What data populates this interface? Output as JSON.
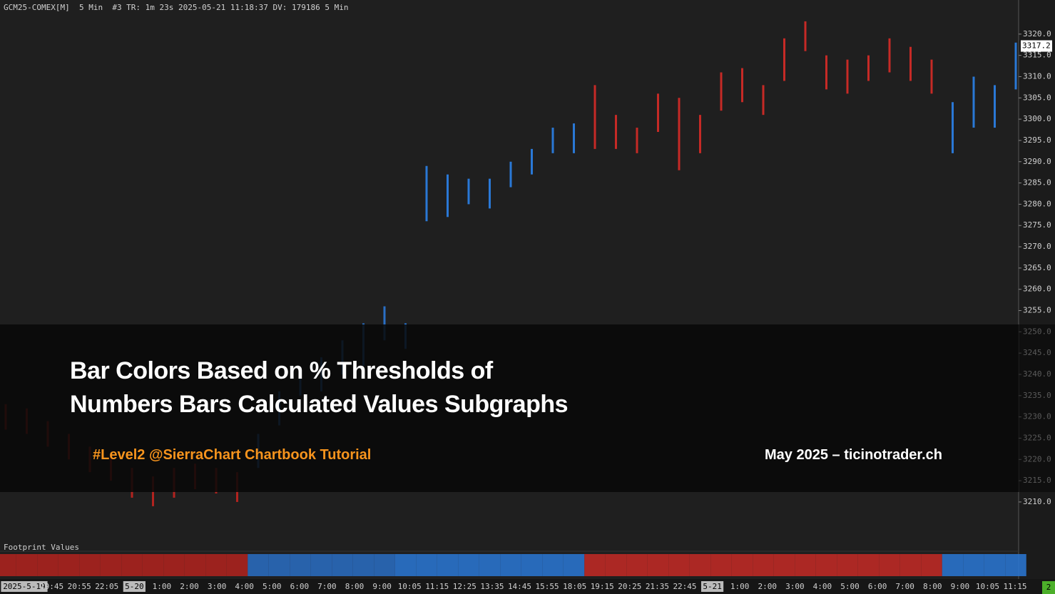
{
  "header": "GCM25-COMEX[M]  5 Min  #3 TR: 1m 23s 2025-05-21 11:18:37 DV: 179186 5 Min",
  "overlay": {
    "title_line1": "Bar Colors Based on % Thresholds of",
    "title_line2": "Numbers Bars Calculated Values Subgraphs",
    "subtitle": "#Level2 @SierraChart Chartbook Tutorial",
    "credit": "May 2025 – ticinotrader.ch"
  },
  "subgraph_label": "Footprint Values",
  "status_box": "2",
  "chart_data": {
    "type": "ohlc",
    "ylim": [
      3200.6,
      3325
    ],
    "yticks": [
      {
        "value": 3320,
        "label": "3320.0"
      },
      {
        "value": 3315,
        "label": "3315.0"
      },
      {
        "value": 3310,
        "label": "3310.0"
      },
      {
        "value": 3305,
        "label": "3305.0"
      },
      {
        "value": 3300,
        "label": "3300.0"
      },
      {
        "value": 3295,
        "label": "3295.0"
      },
      {
        "value": 3290,
        "label": "3290.0"
      },
      {
        "value": 3285,
        "label": "3285.0"
      },
      {
        "value": 3280,
        "label": "3280.0"
      },
      {
        "value": 3275,
        "label": "3275.0"
      },
      {
        "value": 3270,
        "label": "3270.0"
      },
      {
        "value": 3265,
        "label": "3265.0"
      },
      {
        "value": 3260,
        "label": "3260.0"
      },
      {
        "value": 3255,
        "label": "3255.0"
      },
      {
        "value": 3250,
        "label": "3250.0"
      },
      {
        "value": 3245,
        "label": "3245.0"
      },
      {
        "value": 3240,
        "label": "3240.0"
      },
      {
        "value": 3235,
        "label": "3235.0"
      },
      {
        "value": 3230,
        "label": "3230.0"
      },
      {
        "value": 3225,
        "label": "3225.0"
      },
      {
        "value": 3220,
        "label": "3220.0"
      },
      {
        "value": 3215,
        "label": "3215.0"
      },
      {
        "value": 3210,
        "label": "3210.0"
      }
    ],
    "last_price": 3317.2,
    "x_labels": [
      "2025-5-19",
      "19:45",
      "20:55",
      "22:05",
      "5-20",
      "1:00",
      "2:00",
      "3:00",
      "4:00",
      "5:00",
      "6:00",
      "7:00",
      "8:00",
      "9:00",
      "10:05",
      "11:15",
      "12:25",
      "13:35",
      "14:45",
      "15:55",
      "18:05",
      "19:15",
      "20:25",
      "21:35",
      "22:45",
      "5-21",
      "1:00",
      "2:00",
      "3:00",
      "4:00",
      "5:00",
      "6:00",
      "7:00",
      "8:00",
      "9:00",
      "10:05",
      "11:15"
    ],
    "high": [
      3233,
      3232,
      3229,
      3226,
      3223,
      3221,
      3218,
      3216,
      3218,
      3219,
      3218,
      3217,
      3226,
      3236,
      3241,
      3244,
      3248,
      3252,
      3256,
      3252,
      3289,
      3287,
      3286,
      3286,
      3290,
      3293,
      3298,
      3299,
      3308,
      3301,
      3298,
      3306,
      3305,
      3301,
      3311,
      3312,
      3308,
      3319,
      3323,
      3315,
      3314,
      3315,
      3319,
      3317,
      3314,
      3304,
      3310,
      3308,
      3318
    ],
    "low": [
      3227,
      3226,
      3223,
      3220,
      3217,
      3215,
      3211,
      3209,
      3211,
      3213,
      3212,
      3210,
      3218,
      3228,
      3235,
      3236,
      3240,
      3242,
      3248,
      3246,
      3276,
      3277,
      3280,
      3279,
      3284,
      3287,
      3292,
      3292,
      3293,
      3293,
      3292,
      3297,
      3288,
      3292,
      3302,
      3304,
      3301,
      3309,
      3316,
      3307,
      3306,
      3309,
      3311,
      3309,
      3306,
      3292,
      3298,
      3298,
      3307
    ],
    "colors": [
      "#b3231f",
      "#b3231f",
      "#b3231f",
      "#b3231f",
      "#b3231f",
      "#b3231f",
      "#b3231f",
      "#b3231f",
      "#b3231f",
      "#b3231f",
      "#b3231f",
      "#b3231f",
      "#2a6fc4",
      "#2a6fc4",
      "#2a6fc4",
      "#2a6fc4",
      "#2a6fc4",
      "#2a6fc4",
      "#2a6fc4",
      "#2a78d6",
      "#2a78d6",
      "#2a78d6",
      "#2a78d6",
      "#2a78d6",
      "#2a78d6",
      "#2a78d6",
      "#2a78d6",
      "#2a78d6",
      "#c62a26",
      "#c62a26",
      "#c62a26",
      "#c62a26",
      "#c62a26",
      "#c62a26",
      "#c62a26",
      "#c62a26",
      "#c62a26",
      "#c62a26",
      "#c62a26",
      "#c62a26",
      "#c62a26",
      "#c62a26",
      "#c62a26",
      "#c62a26",
      "#c62a26",
      "#2a78d6",
      "#2a78d6",
      "#2a78d6",
      "#2a78d6"
    ]
  }
}
